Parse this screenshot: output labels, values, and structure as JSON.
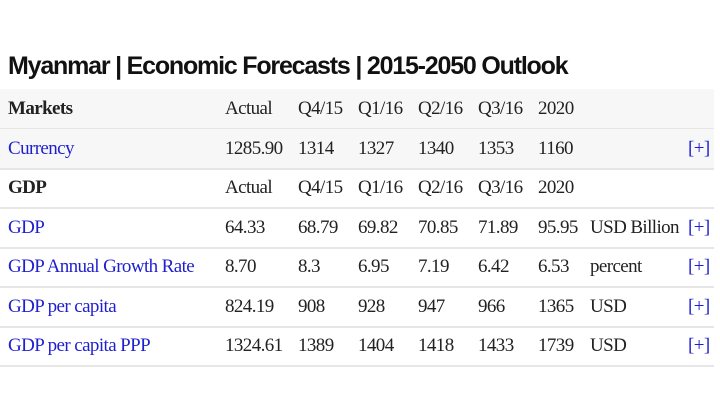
{
  "title": "Myanmar | Economic Forecasts | 2015-2050 Outlook",
  "sections": [
    {
      "header": [
        "Markets",
        "Actual",
        "Q4/15",
        "Q1/16",
        "Q2/16",
        "Q3/16",
        "2020"
      ],
      "rows": [
        {
          "name": "Currency",
          "values": [
            "1285.90",
            "1314",
            "1327",
            "1340",
            "1353",
            "1160"
          ],
          "link": "[+]"
        }
      ]
    },
    {
      "header": [
        "GDP",
        "Actual",
        "Q4/15",
        "Q1/16",
        "Q2/16",
        "Q3/16",
        "2020"
      ],
      "rows": [
        {
          "name": "GDP",
          "values": [
            "64.33",
            "68.79",
            "69.82",
            "70.85",
            "71.89",
            "95.95"
          ],
          "unit": "USD Billion",
          "link": "[+]"
        },
        {
          "name": "GDP Annual Growth Rate",
          "values": [
            "8.70",
            "8.3",
            "6.95",
            "7.19",
            "6.42",
            "6.53"
          ],
          "unit": "percent",
          "link": "[+]"
        },
        {
          "name": "GDP per capita",
          "values": [
            "824.19",
            "908",
            "928",
            "947",
            "966",
            "1365"
          ],
          "unit": "USD",
          "link": "[+]"
        },
        {
          "name": "GDP per capita PPP",
          "values": [
            "1324.61",
            "1389",
            "1404",
            "1418",
            "1433",
            "1739"
          ],
          "unit": "USD",
          "link": "[+]"
        }
      ]
    }
  ]
}
